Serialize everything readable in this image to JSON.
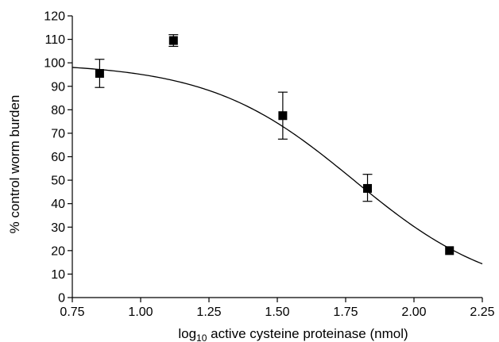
{
  "chart_data": {
    "type": "scatter",
    "xlabel_prefix": "log",
    "xlabel_subscript": "10",
    "xlabel_rest": " active cysteine proteinase (nmol)",
    "ylabel": "% control worm burden",
    "xlim": [
      0.75,
      2.25
    ],
    "ylim": [
      0,
      120
    ],
    "xticks": [
      "0.75",
      "1.00",
      "1.25",
      "1.50",
      "1.75",
      "2.00",
      "2.25"
    ],
    "yticks": [
      "0",
      "10",
      "20",
      "30",
      "40",
      "50",
      "60",
      "70",
      "80",
      "90",
      "100",
      "110",
      "120"
    ],
    "grid": false,
    "legend": "none",
    "points": [
      {
        "x": 0.85,
        "y": 95.5,
        "err_low": 89.5,
        "err_high": 101.5
      },
      {
        "x": 1.12,
        "y": 109.5,
        "err_low": 107.0,
        "err_high": 112.0
      },
      {
        "x": 1.52,
        "y": 77.5,
        "err_low": 67.5,
        "err_high": 87.5
      },
      {
        "x": 1.83,
        "y": 46.5,
        "err_low": 41.0,
        "err_high": 52.5
      },
      {
        "x": 2.13,
        "y": 20.0,
        "err_low": 20.0,
        "err_high": 20.0
      }
    ],
    "fit": {
      "model": "sigmoidal dose-response",
      "top": 100,
      "bottom": 0,
      "log_ec50": 1.78,
      "hill_slope": -1.65,
      "x_range": [
        0.75,
        2.25
      ]
    }
  }
}
